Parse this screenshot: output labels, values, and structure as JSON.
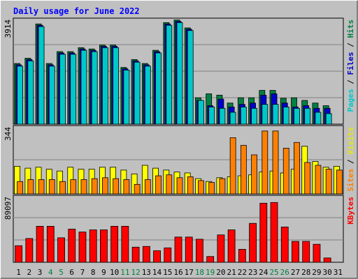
{
  "chart_data": {
    "type": "bar",
    "title": "Daily usage for June 2022",
    "x": [
      1,
      2,
      3,
      4,
      5,
      6,
      7,
      8,
      9,
      10,
      11,
      12,
      13,
      14,
      15,
      16,
      17,
      18,
      19,
      20,
      21,
      22,
      23,
      24,
      25,
      26,
      27,
      28,
      29,
      30,
      31
    ],
    "weekend_days": [
      4,
      5,
      11,
      12,
      18,
      19,
      25,
      26
    ],
    "panels": [
      {
        "name": "hits-files-pages",
        "ymax_label": "3914",
        "ymax": 3914,
        "side_labels": [
          {
            "text": "Pages",
            "color": "#00c8c8"
          },
          {
            "text": " / ",
            "color": "#000000"
          },
          {
            "text": "Files",
            "color": "#0000cc"
          },
          {
            "text": " / ",
            "color": "#000000"
          },
          {
            "text": "Hits",
            "color": "#008040"
          }
        ],
        "series": [
          {
            "name": "Hits",
            "color": "#008040",
            "values": [
              2300,
              2500,
              3800,
              2300,
              2750,
              2750,
              2900,
              2850,
              3000,
              3000,
              2150,
              2450,
              2300,
              2800,
              3850,
              3950,
              3650,
              1000,
              1150,
              1100,
              800,
              1000,
              1000,
              1280,
              1280,
              980,
              1000,
              900,
              800,
              700,
              0
            ]
          },
          {
            "name": "Files",
            "color": "#0000cc",
            "values": [
              2250,
              2450,
              3750,
              2250,
              2700,
              2700,
              2850,
              2800,
              2950,
              2950,
              2100,
              2400,
              2250,
              2750,
              3800,
              3900,
              3600,
              900,
              700,
              950,
              650,
              750,
              800,
              1100,
              1150,
              800,
              650,
              700,
              600,
              600,
              0
            ]
          },
          {
            "name": "Pages",
            "color": "#00c8c8",
            "values": [
              2200,
              2400,
              3700,
              2200,
              2650,
              2650,
              2800,
              2750,
              2900,
              2900,
              2050,
              2350,
              2200,
              2700,
              3750,
              3850,
              3550,
              900,
              650,
              600,
              450,
              650,
              600,
              750,
              750,
              650,
              600,
              600,
              450,
              400,
              0
            ]
          }
        ]
      },
      {
        "name": "visits-sites",
        "ymax_label": "344",
        "ymax": 344,
        "side_labels": [
          {
            "text": "Sites",
            "color": "#ff8000"
          },
          {
            "text": " / ",
            "color": "#000000"
          },
          {
            "text": "Visits",
            "color": "#e8e800"
          }
        ],
        "series": [
          {
            "name": "Visits",
            "color": "#ffff00",
            "values": [
              145,
              135,
              140,
              130,
              120,
              140,
              130,
              130,
              140,
              140,
              125,
              105,
              150,
              135,
              125,
              115,
              110,
              80,
              65,
              85,
              90,
              95,
              100,
              115,
              120,
              110,
              130,
              250,
              170,
              140,
              145
            ]
          },
          {
            "name": "Sites",
            "color": "#ff8000",
            "values": [
              65,
              75,
              75,
              75,
              65,
              75,
              75,
              80,
              85,
              80,
              75,
              50,
              75,
              95,
              100,
              85,
              90,
              70,
              60,
              80,
              295,
              255,
              205,
              330,
              330,
              240,
              270,
              165,
              150,
              130,
              125
            ]
          }
        ]
      },
      {
        "name": "kbytes",
        "ymax_label": "89097",
        "ymax": 89097,
        "side_labels": [
          {
            "text": "KBytes",
            "color": "#ff0000"
          }
        ],
        "series": [
          {
            "name": "KBytes",
            "color": "#ff0000",
            "values": [
              23000,
              33000,
              50000,
              50000,
              34000,
              46000,
              42000,
              45000,
              45000,
              50000,
              50000,
              21000,
              22000,
              16000,
              20000,
              35000,
              35000,
              32000,
              8000,
              38000,
              45000,
              18000,
              54000,
              82000,
              83000,
              49000,
              29000,
              29000,
              25000,
              6000,
              0
            ]
          }
        ]
      }
    ]
  }
}
